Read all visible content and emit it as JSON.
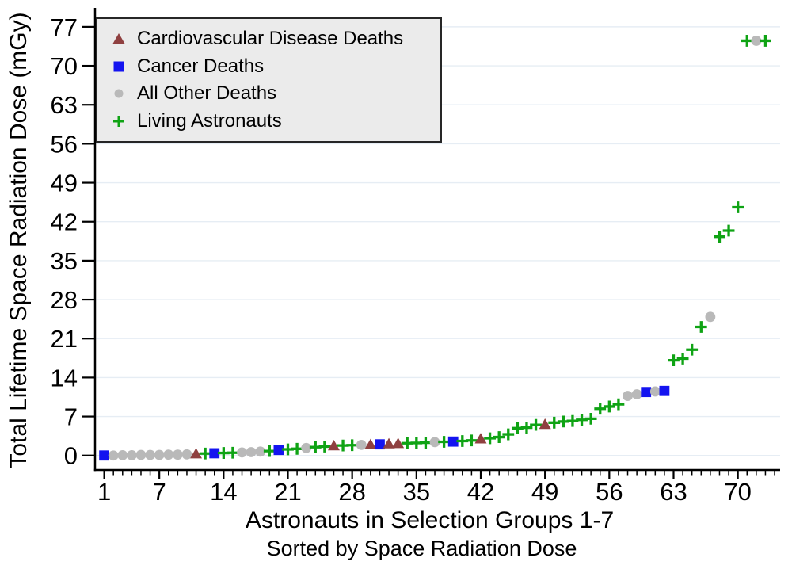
{
  "figure": {
    "background": "#ffffff",
    "axis_color": "#000000",
    "grid_color": "#e6edf4",
    "legend_background": "#ebebeb",
    "legend_border": "#262626"
  },
  "chart_data": {
    "type": "scatter",
    "title": "",
    "xlabel": "Astronauts in Selection Groups 1-7",
    "xlabel_line2": "Sorted by Space Radiation Dose",
    "ylabel": "Total Lifetime Space Radiation Dose (mGy)",
    "xlim": [
      0,
      74.6
    ],
    "ylim": [
      -2.6,
      80.4
    ],
    "x_major_ticks": [
      1,
      7,
      14,
      21,
      28,
      35,
      42,
      49,
      56,
      63,
      70
    ],
    "x_minor_tick_min": 1,
    "x_minor_tick_max": 74,
    "x_minor_tick_step": 1,
    "y_ticks": [
      0,
      7,
      14,
      21,
      28,
      35,
      42,
      49,
      56,
      63,
      70,
      77
    ],
    "grid": "horizontal",
    "legend_position": "top-left-inside",
    "series": [
      {
        "id": "cvd",
        "label": "Cardiovascular Disease Deaths",
        "marker": "triangle",
        "color": "#8f4040"
      },
      {
        "id": "cancer",
        "label": "Cancer Deaths",
        "marker": "square",
        "color": "#1414f0"
      },
      {
        "id": "other",
        "label": "All Other Deaths",
        "marker": "circle",
        "color": "#b9b9b9"
      },
      {
        "id": "living",
        "label": "Living Astronauts",
        "marker": "plus",
        "color": "#0fa314"
      }
    ],
    "points": [
      {
        "x": 1,
        "y": 0.0,
        "s": "cancer"
      },
      {
        "x": 2,
        "y": 0.0,
        "s": "other"
      },
      {
        "x": 3,
        "y": 0.05,
        "s": "other"
      },
      {
        "x": 4,
        "y": 0.05,
        "s": "other"
      },
      {
        "x": 5,
        "y": 0.1,
        "s": "other"
      },
      {
        "x": 6,
        "y": 0.1,
        "s": "other"
      },
      {
        "x": 7,
        "y": 0.1,
        "s": "other"
      },
      {
        "x": 8,
        "y": 0.15,
        "s": "other"
      },
      {
        "x": 9,
        "y": 0.15,
        "s": "other"
      },
      {
        "x": 10,
        "y": 0.2,
        "s": "other"
      },
      {
        "x": 11,
        "y": 0.3,
        "s": "cvd"
      },
      {
        "x": 12,
        "y": 0.35,
        "s": "living"
      },
      {
        "x": 13,
        "y": 0.4,
        "s": "cancer"
      },
      {
        "x": 14,
        "y": 0.45,
        "s": "living"
      },
      {
        "x": 15,
        "y": 0.5,
        "s": "living"
      },
      {
        "x": 16,
        "y": 0.55,
        "s": "other"
      },
      {
        "x": 17,
        "y": 0.6,
        "s": "other"
      },
      {
        "x": 18,
        "y": 0.7,
        "s": "other"
      },
      {
        "x": 19,
        "y": 0.8,
        "s": "living"
      },
      {
        "x": 20,
        "y": 1.0,
        "s": "cancer"
      },
      {
        "x": 21,
        "y": 1.1,
        "s": "living"
      },
      {
        "x": 22,
        "y": 1.2,
        "s": "living"
      },
      {
        "x": 23,
        "y": 1.35,
        "s": "other"
      },
      {
        "x": 24,
        "y": 1.5,
        "s": "living"
      },
      {
        "x": 25,
        "y": 1.6,
        "s": "living"
      },
      {
        "x": 26,
        "y": 1.75,
        "s": "cvd"
      },
      {
        "x": 27,
        "y": 1.8,
        "s": "living"
      },
      {
        "x": 28,
        "y": 1.85,
        "s": "living"
      },
      {
        "x": 29,
        "y": 1.9,
        "s": "other"
      },
      {
        "x": 30,
        "y": 1.95,
        "s": "cvd"
      },
      {
        "x": 31,
        "y": 2.0,
        "s": "cancer"
      },
      {
        "x": 32,
        "y": 2.1,
        "s": "cvd"
      },
      {
        "x": 33,
        "y": 2.15,
        "s": "cvd"
      },
      {
        "x": 34,
        "y": 2.2,
        "s": "living"
      },
      {
        "x": 35,
        "y": 2.25,
        "s": "living"
      },
      {
        "x": 36,
        "y": 2.3,
        "s": "living"
      },
      {
        "x": 37,
        "y": 2.4,
        "s": "other"
      },
      {
        "x": 38,
        "y": 2.45,
        "s": "living"
      },
      {
        "x": 39,
        "y": 2.5,
        "s": "cancer"
      },
      {
        "x": 40,
        "y": 2.6,
        "s": "living"
      },
      {
        "x": 41,
        "y": 2.7,
        "s": "living"
      },
      {
        "x": 42,
        "y": 3.0,
        "s": "cvd"
      },
      {
        "x": 43,
        "y": 3.1,
        "s": "living"
      },
      {
        "x": 44,
        "y": 3.3,
        "s": "living"
      },
      {
        "x": 45,
        "y": 3.8,
        "s": "living"
      },
      {
        "x": 46,
        "y": 4.9,
        "s": "living"
      },
      {
        "x": 47,
        "y": 5.0,
        "s": "living"
      },
      {
        "x": 48,
        "y": 5.5,
        "s": "living"
      },
      {
        "x": 49,
        "y": 5.6,
        "s": "cvd"
      },
      {
        "x": 50,
        "y": 5.9,
        "s": "living"
      },
      {
        "x": 51,
        "y": 6.1,
        "s": "living"
      },
      {
        "x": 52,
        "y": 6.2,
        "s": "living"
      },
      {
        "x": 53,
        "y": 6.4,
        "s": "living"
      },
      {
        "x": 54,
        "y": 6.6,
        "s": "living"
      },
      {
        "x": 55,
        "y": 8.4,
        "s": "living"
      },
      {
        "x": 56,
        "y": 8.8,
        "s": "living"
      },
      {
        "x": 57,
        "y": 9.2,
        "s": "living"
      },
      {
        "x": 58,
        "y": 10.7,
        "s": "other"
      },
      {
        "x": 59,
        "y": 11.0,
        "s": "other"
      },
      {
        "x": 60,
        "y": 11.4,
        "s": "cancer"
      },
      {
        "x": 61,
        "y": 11.5,
        "s": "other"
      },
      {
        "x": 62,
        "y": 11.6,
        "s": "cancer"
      },
      {
        "x": 63,
        "y": 17.1,
        "s": "living"
      },
      {
        "x": 64,
        "y": 17.4,
        "s": "living"
      },
      {
        "x": 65,
        "y": 19.0,
        "s": "living"
      },
      {
        "x": 66,
        "y": 23.1,
        "s": "living"
      },
      {
        "x": 67,
        "y": 24.9,
        "s": "other"
      },
      {
        "x": 68,
        "y": 39.3,
        "s": "living"
      },
      {
        "x": 69,
        "y": 40.4,
        "s": "living"
      },
      {
        "x": 70,
        "y": 44.6,
        "s": "living"
      },
      {
        "x": 71,
        "y": 74.5,
        "s": "living"
      },
      {
        "x": 72,
        "y": 74.5,
        "s": "other"
      },
      {
        "x": 73,
        "y": 74.5,
        "s": "living"
      }
    ]
  }
}
